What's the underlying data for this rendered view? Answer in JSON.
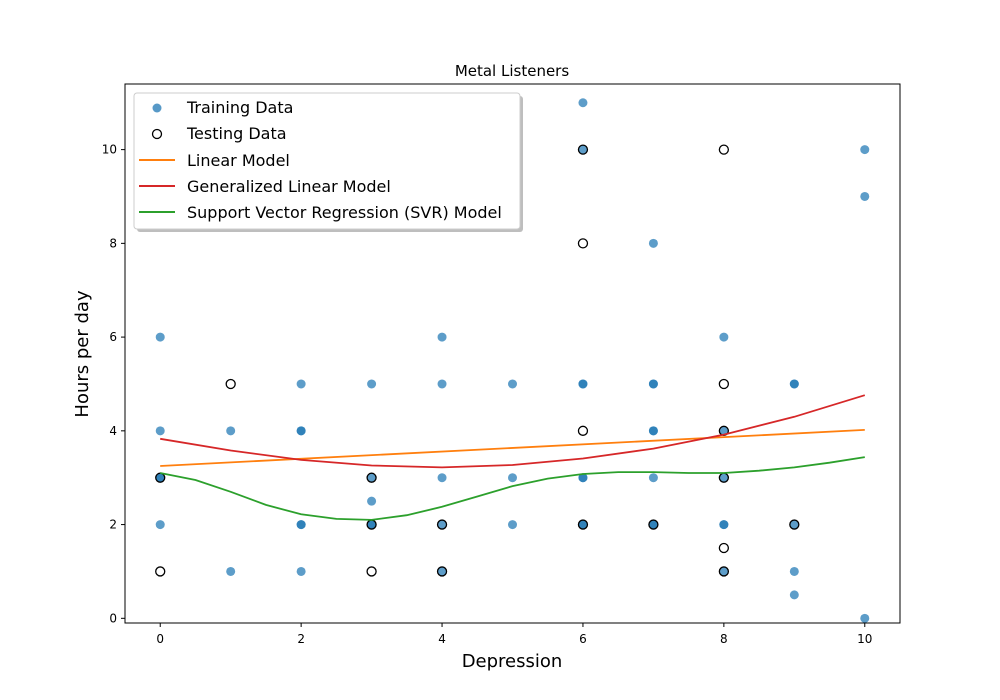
{
  "chart_data": {
    "type": "scatter",
    "title": "Metal Listeners",
    "xlabel": "Depression",
    "ylabel": "Hours per day",
    "xlim": [
      -0.5,
      10.5
    ],
    "ylim": [
      -0.1,
      11.4
    ],
    "xticks": [
      0,
      2,
      4,
      6,
      8,
      10
    ],
    "yticks": [
      0,
      2,
      4,
      6,
      8,
      10
    ],
    "grid": false,
    "legend_position": "top-left",
    "colors": {
      "training": "#1f77b4",
      "testing_edge": "#000000",
      "linear": "#ff7f0e",
      "glm": "#d62728",
      "svr": "#2ca02c"
    },
    "training_data": {
      "name": "Training Data",
      "points": [
        [
          0,
          6
        ],
        [
          0,
          4
        ],
        [
          0,
          3
        ],
        [
          0,
          3
        ],
        [
          0,
          2
        ],
        [
          1,
          4
        ],
        [
          1,
          1
        ],
        [
          2,
          5
        ],
        [
          2,
          4
        ],
        [
          2,
          4
        ],
        [
          2,
          2
        ],
        [
          2,
          2
        ],
        [
          2,
          1
        ],
        [
          3,
          5
        ],
        [
          3,
          3
        ],
        [
          3,
          2.5
        ],
        [
          3,
          2
        ],
        [
          3,
          2
        ],
        [
          4,
          6
        ],
        [
          4,
          5
        ],
        [
          4,
          3
        ],
        [
          4,
          2
        ],
        [
          4,
          1
        ],
        [
          5,
          5
        ],
        [
          5,
          3
        ],
        [
          5,
          2
        ],
        [
          6,
          11
        ],
        [
          6,
          10
        ],
        [
          6,
          5
        ],
        [
          6,
          5
        ],
        [
          6,
          3
        ],
        [
          6,
          3
        ],
        [
          6,
          2
        ],
        [
          6,
          2
        ],
        [
          7,
          8
        ],
        [
          7,
          5
        ],
        [
          7,
          5
        ],
        [
          7,
          4
        ],
        [
          7,
          4
        ],
        [
          7,
          3
        ],
        [
          7,
          2
        ],
        [
          7,
          2
        ],
        [
          8,
          6
        ],
        [
          8,
          4
        ],
        [
          8,
          3
        ],
        [
          8,
          2
        ],
        [
          8,
          2
        ],
        [
          8,
          1
        ],
        [
          9,
          5
        ],
        [
          9,
          5
        ],
        [
          9,
          2
        ],
        [
          9,
          1
        ],
        [
          9,
          0.5
        ],
        [
          10,
          10
        ],
        [
          10,
          9
        ],
        [
          10,
          0
        ]
      ]
    },
    "testing_data": {
      "name": "Testing Data",
      "points": [
        [
          0,
          3
        ],
        [
          0,
          1
        ],
        [
          1,
          5
        ],
        [
          3,
          3
        ],
        [
          3,
          2
        ],
        [
          3,
          1
        ],
        [
          4,
          2
        ],
        [
          4,
          1
        ],
        [
          6,
          10
        ],
        [
          6,
          8
        ],
        [
          6,
          4
        ],
        [
          6,
          2
        ],
        [
          7,
          2
        ],
        [
          8,
          10
        ],
        [
          8,
          5
        ],
        [
          8,
          4
        ],
        [
          8,
          3
        ],
        [
          8,
          1.5
        ],
        [
          8,
          1
        ],
        [
          9,
          2
        ]
      ]
    },
    "series": [
      {
        "name": "Linear Model",
        "x": [
          0,
          10
        ],
        "y": [
          3.25,
          4.02
        ]
      },
      {
        "name": "Generalized Linear Model",
        "x": [
          0,
          1,
          2,
          3,
          4,
          5,
          6,
          7,
          8,
          9,
          10
        ],
        "y": [
          3.83,
          3.58,
          3.38,
          3.26,
          3.22,
          3.27,
          3.41,
          3.62,
          3.92,
          4.3,
          4.76
        ]
      },
      {
        "name": "Support Vector Regression (SVR) Model",
        "x": [
          0,
          0.5,
          1,
          1.5,
          2,
          2.5,
          3,
          3.5,
          4,
          4.5,
          5,
          5.5,
          6,
          6.5,
          7,
          7.5,
          8,
          8.5,
          9,
          9.5,
          10
        ],
        "y": [
          3.1,
          2.95,
          2.7,
          2.42,
          2.22,
          2.12,
          2.1,
          2.2,
          2.38,
          2.6,
          2.82,
          2.98,
          3.08,
          3.12,
          3.12,
          3.1,
          3.1,
          3.15,
          3.22,
          3.32,
          3.44
        ]
      }
    ]
  }
}
